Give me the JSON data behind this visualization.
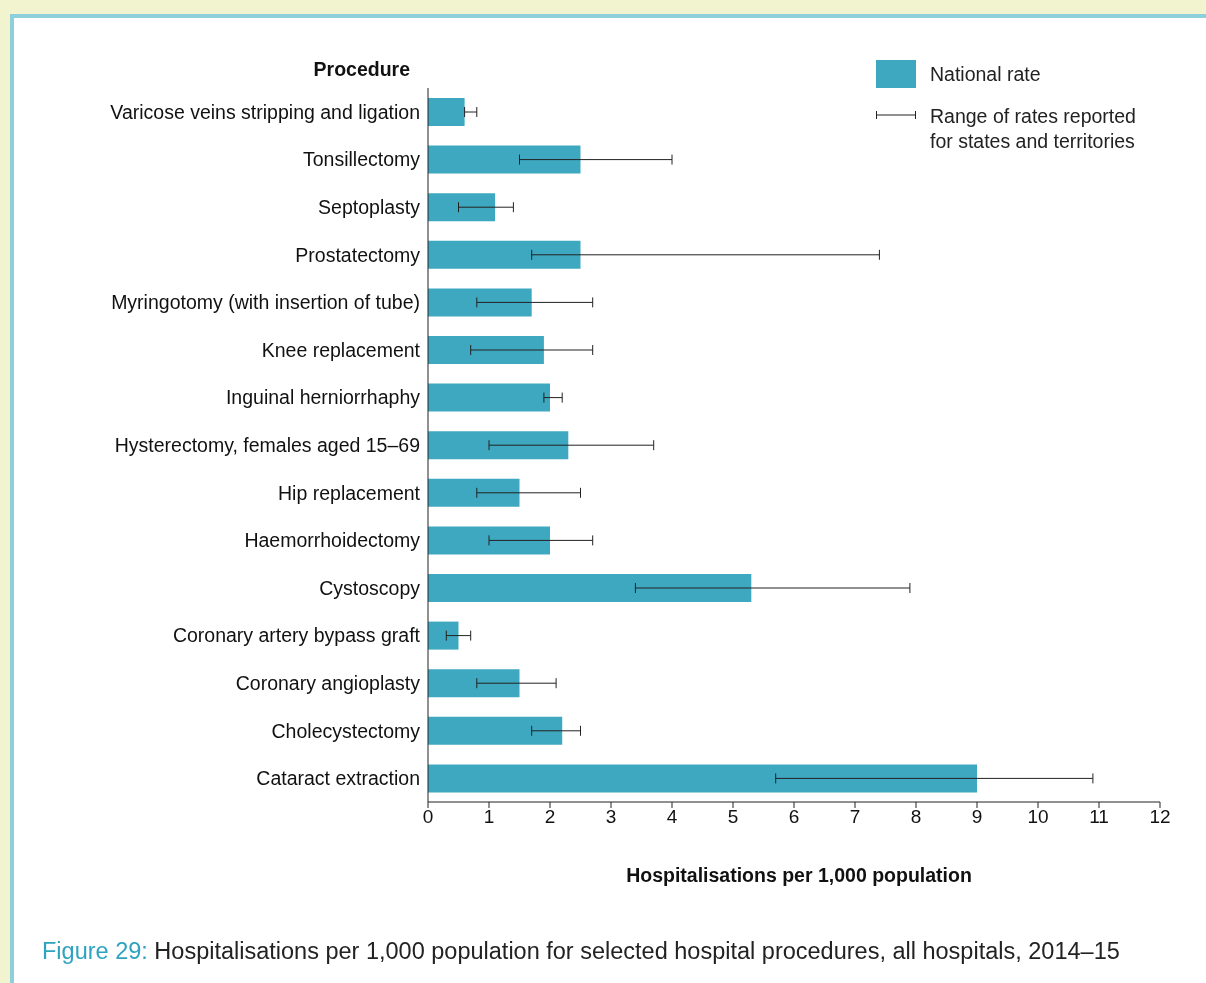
{
  "chart_data": {
    "type": "bar",
    "orientation": "horizontal",
    "title": "Figure 29: Hospitalisations per 1,000 population for selected hospital procedures, all hospitals, 2014–15",
    "xlabel": "Hospitalisations per 1,000 population",
    "ylabel": "Procedure",
    "categories": [
      "Varicose veins stripping and ligation",
      "Tonsillectomy",
      "Septoplasty",
      "Prostatectomy",
      "Myringotomy (with insertion of tube)",
      "Knee replacement",
      "Inguinal herniorrhaphy",
      "Hysterectomy, females aged 15–69",
      "Hip replacement",
      "Haemorrhoidectomy",
      "Cystoscopy",
      "Coronary artery bypass graft",
      "Coronary angioplasty",
      "Cholecystectomy",
      "Cataract extraction"
    ],
    "series": [
      {
        "name": "National rate",
        "color": "#3ea8c0",
        "values": [
          0.6,
          2.5,
          1.1,
          2.5,
          1.7,
          1.9,
          2.0,
          2.3,
          1.5,
          2.0,
          5.3,
          0.5,
          1.5,
          2.2,
          9.0
        ],
        "errors": [
          [
            0.6,
            0.8
          ],
          [
            1.5,
            4.0
          ],
          [
            0.5,
            1.4
          ],
          [
            1.7,
            7.4
          ],
          [
            0.8,
            2.7
          ],
          [
            0.7,
            2.7
          ],
          [
            1.9,
            2.2
          ],
          [
            1.0,
            3.7
          ],
          [
            0.8,
            2.5
          ],
          [
            1.0,
            2.7
          ],
          [
            3.4,
            7.9
          ],
          [
            0.3,
            0.7
          ],
          [
            0.8,
            2.1
          ],
          [
            1.7,
            2.5
          ],
          [
            5.7,
            10.9
          ]
        ]
      }
    ],
    "annotations": [
      "Range of rates reported for states and territories"
    ],
    "xlim": [
      0,
      12
    ],
    "xticks": [
      0,
      1,
      2,
      3,
      4,
      5,
      6,
      7,
      8,
      9,
      10,
      11,
      12
    ],
    "legend": "top right"
  }
}
